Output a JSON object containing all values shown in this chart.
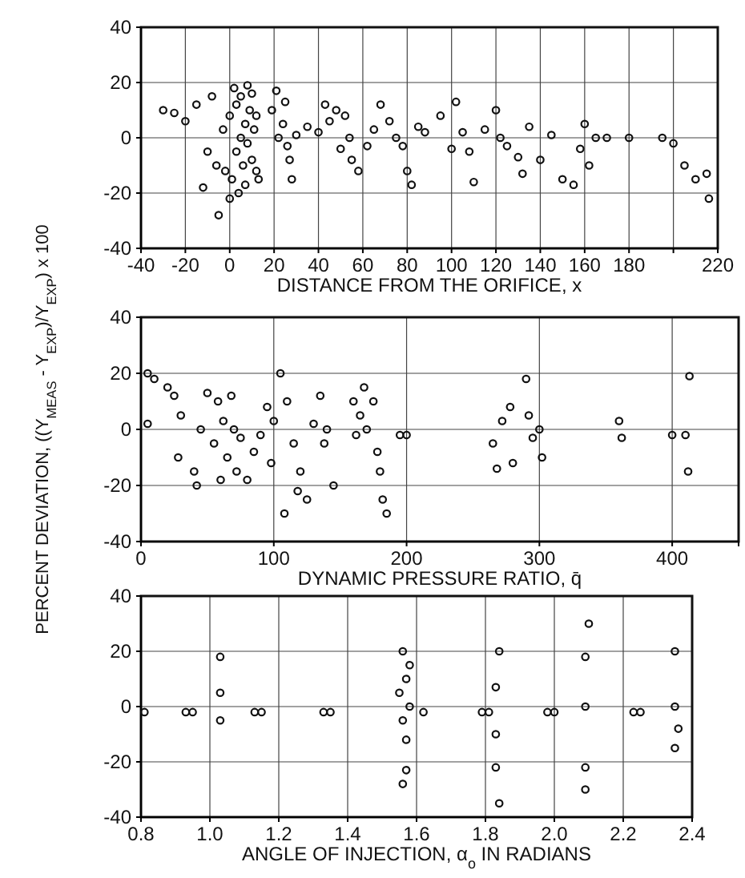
{
  "chart_data": [
    {
      "type": "scatter",
      "xlabel": "DISTANCE FROM THE ORIFICE, x",
      "xlim": [
        -40,
        220
      ],
      "xticks": [
        -40,
        -20,
        0,
        20,
        40,
        60,
        80,
        100,
        120,
        140,
        160,
        180,
        {
          "value": 200,
          "label": null
        },
        220
      ],
      "ylim": [
        -40,
        40
      ],
      "yticks": [
        -40,
        -20,
        0,
        20,
        40
      ],
      "grid": true,
      "marker": "circle",
      "series": [
        {
          "color": "#111111",
          "x": [
            -30,
            -25,
            -20,
            -15,
            -12,
            -10,
            -8,
            -6,
            -5,
            -3,
            -2,
            0,
            0,
            1,
            2,
            3,
            3,
            4,
            5,
            5,
            6,
            7,
            7,
            8,
            8,
            9,
            10,
            10,
            11,
            12,
            12,
            13,
            19,
            21,
            22,
            24,
            25,
            26,
            27,
            28,
            30,
            35,
            40,
            43,
            45,
            48,
            50,
            52,
            54,
            55,
            58,
            62,
            65,
            68,
            72,
            75,
            78,
            80,
            82,
            85,
            88,
            95,
            100,
            102,
            105,
            108,
            110,
            115,
            120,
            122,
            125,
            130,
            132,
            135,
            140,
            145,
            150,
            155,
            158,
            160,
            162,
            165,
            170,
            180,
            195,
            200,
            205,
            210,
            215,
            216
          ],
          "values": [
            10,
            9,
            6,
            12,
            -18,
            -5,
            15,
            -10,
            -28,
            3,
            -12,
            -22,
            8,
            -15,
            18,
            -5,
            12,
            -20,
            0,
            15,
            -10,
            5,
            -17,
            19,
            -2,
            10,
            -8,
            16,
            3,
            -12,
            8,
            -15,
            10,
            17,
            0,
            5,
            13,
            -3,
            -8,
            -15,
            1,
            4,
            2,
            12,
            6,
            10,
            -4,
            8,
            0,
            -8,
            -12,
            -3,
            3,
            12,
            6,
            0,
            -3,
            -12,
            -17,
            4,
            2,
            8,
            -4,
            13,
            2,
            -5,
            -16,
            3,
            10,
            0,
            -3,
            -7,
            -13,
            4,
            -8,
            1,
            -15,
            -17,
            -4,
            5,
            -10,
            0,
            0,
            0,
            0,
            -2,
            -10,
            -15,
            -13,
            -22
          ]
        }
      ]
    },
    {
      "type": "scatter",
      "xlabel": "DYNAMIC PRESSURE RATIO, q̄",
      "ylabel": "PERCENT DEVIATION, ((Y$_{MEAS}$ - Y$_{EXP}$)/Y$_{EXP}$) x 100",
      "xlim": [
        0,
        450
      ],
      "xticks": [
        0,
        100,
        200,
        300,
        400
      ],
      "ylim": [
        -40,
        40
      ],
      "yticks": [
        -40,
        -20,
        0,
        20,
        40
      ],
      "grid": true,
      "marker": "circle",
      "series": [
        {
          "color": "#111111",
          "x": [
            5,
            5,
            10,
            20,
            25,
            28,
            30,
            40,
            42,
            45,
            50,
            55,
            58,
            60,
            62,
            65,
            68,
            70,
            72,
            75,
            80,
            85,
            90,
            95,
            98,
            100,
            105,
            108,
            110,
            115,
            118,
            120,
            125,
            130,
            135,
            138,
            140,
            145,
            160,
            162,
            165,
            168,
            170,
            175,
            178,
            180,
            182,
            185,
            195,
            200,
            265,
            268,
            272,
            278,
            280,
            290,
            292,
            295,
            300,
            302,
            360,
            362,
            400,
            410,
            412,
            413
          ],
          "values": [
            20,
            2,
            18,
            15,
            12,
            -10,
            5,
            -15,
            -20,
            0,
            13,
            -5,
            10,
            -18,
            3,
            -10,
            12,
            0,
            -15,
            -3,
            -18,
            -8,
            -2,
            8,
            -12,
            3,
            20,
            -30,
            10,
            -5,
            -22,
            -15,
            -25,
            2,
            12,
            -5,
            0,
            -20,
            10,
            -2,
            5,
            15,
            0,
            10,
            -8,
            -15,
            -25,
            -30,
            -2,
            -2,
            -5,
            -14,
            3,
            8,
            -12,
            18,
            5,
            -3,
            0,
            -10,
            3,
            -3,
            -2,
            -2,
            -15,
            19
          ]
        }
      ]
    },
    {
      "type": "scatter",
      "xlabel": "ANGLE OF INJECTION, α$_{o}$ IN RADIANS",
      "xlim": [
        0.8,
        2.4
      ],
      "xticks": [
        {
          "value": 0.8,
          "label": "0.8"
        },
        {
          "value": 1.0,
          "label": "1.0"
        },
        1.2,
        1.4,
        1.6,
        1.8,
        {
          "value": 2.0,
          "label": "2.0"
        },
        2.2,
        2.4
      ],
      "ylim": [
        -40,
        40
      ],
      "yticks": [
        -40,
        -20,
        0,
        20,
        40
      ],
      "grid": true,
      "marker": "circle",
      "series": [
        {
          "color": "#111111",
          "x": [
            0.81,
            0.93,
            0.95,
            1.03,
            1.03,
            1.03,
            1.13,
            1.15,
            1.33,
            1.35,
            1.55,
            1.56,
            1.56,
            1.57,
            1.57,
            1.58,
            1.58,
            1.57,
            1.56,
            1.62,
            1.79,
            1.81,
            1.83,
            1.83,
            1.83,
            1.84,
            1.84,
            1.98,
            2.0,
            2.09,
            2.09,
            2.09,
            2.09,
            2.1,
            2.23,
            2.25,
            2.35,
            2.35,
            2.35,
            2.36
          ],
          "values": [
            -2,
            -2,
            -2,
            18,
            5,
            -5,
            -2,
            -2,
            -2,
            -2,
            5,
            20,
            -5,
            10,
            -23,
            0,
            15,
            -12,
            -28,
            -2,
            -2,
            -2,
            7,
            -10,
            -22,
            20,
            -35,
            -2,
            -2,
            18,
            0,
            -22,
            -30,
            30,
            -2,
            -2,
            20,
            0,
            -15,
            -8
          ]
        }
      ]
    }
  ]
}
